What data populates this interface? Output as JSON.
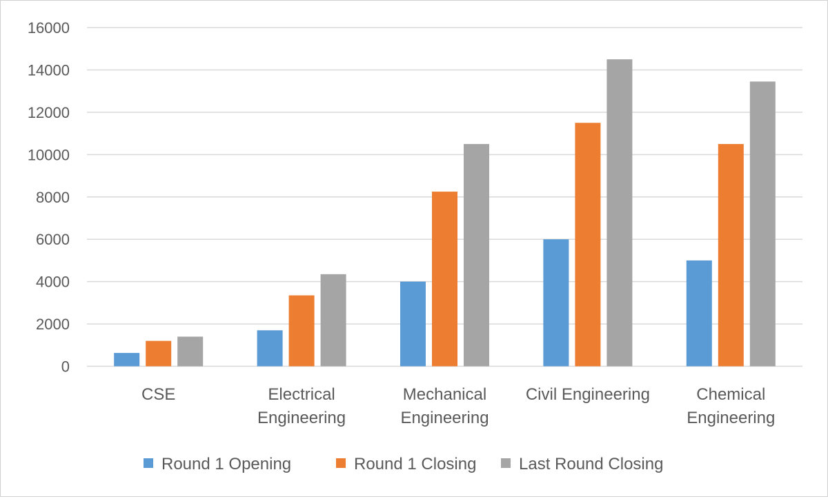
{
  "chart_data": {
    "type": "bar",
    "title": "",
    "xlabel": "",
    "ylabel": "",
    "ylim": [
      0,
      16000
    ],
    "yticks": [
      0,
      2000,
      4000,
      6000,
      8000,
      10000,
      12000,
      14000,
      16000
    ],
    "grid": true,
    "legend_position": "bottom",
    "categories": [
      [
        "CSE"
      ],
      [
        "Electrical",
        "Engineering"
      ],
      [
        "Mechanical",
        "Engineering"
      ],
      [
        "Civil Engineering"
      ],
      [
        "Chemical",
        "Engineering"
      ]
    ],
    "series": [
      {
        "name": "Round 1 Opening",
        "color": "#5b9bd5",
        "values": [
          630,
          1700,
          4000,
          6000,
          5000
        ]
      },
      {
        "name": "Round 1 Closing",
        "color": "#ed7d31",
        "values": [
          1200,
          3350,
          8250,
          11500,
          10500
        ]
      },
      {
        "name": "Last Round Closing",
        "color": "#a5a5a5",
        "values": [
          1400,
          4350,
          10500,
          14500,
          13450
        ]
      }
    ]
  }
}
